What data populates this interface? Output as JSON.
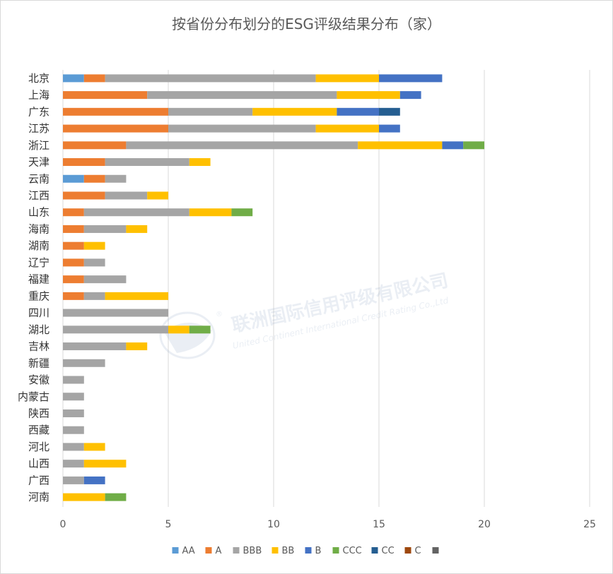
{
  "chart_data": {
    "type": "bar",
    "orientation": "horizontal",
    "stacked": true,
    "title": "按省份分布划分的ESG评级结果分布（家）",
    "categories": [
      "北京",
      "上海",
      "广东",
      "江苏",
      "浙江",
      "天津",
      "云南",
      "江西",
      "山东",
      "海南",
      "湖南",
      "辽宁",
      "福建",
      "重庆",
      "四川",
      "湖北",
      "吉林",
      "新疆",
      "安徽",
      "内蒙古",
      "陕西",
      "西藏",
      "河北",
      "山西",
      "广西",
      "河南"
    ],
    "series": [
      {
        "name": "AA",
        "color": "#5b9bd5",
        "values": [
          1,
          0,
          0,
          0,
          0,
          0,
          1,
          0,
          0,
          0,
          0,
          0,
          0,
          0,
          0,
          0,
          0,
          0,
          0,
          0,
          0,
          0,
          0,
          0,
          0,
          0
        ]
      },
      {
        "name": "A",
        "color": "#ed7d31",
        "values": [
          1,
          4,
          5,
          5,
          3,
          2,
          1,
          2,
          1,
          1,
          1,
          1,
          1,
          1,
          0,
          0,
          0,
          0,
          0,
          0,
          0,
          0,
          0,
          0,
          0,
          0
        ]
      },
      {
        "name": "BBB",
        "color": "#a5a5a5",
        "values": [
          10,
          9,
          4,
          7,
          11,
          4,
          1,
          2,
          5,
          2,
          0,
          1,
          2,
          1,
          5,
          5,
          3,
          2,
          1,
          1,
          1,
          1,
          1,
          1,
          1,
          0
        ]
      },
      {
        "name": "BB",
        "color": "#ffc000",
        "values": [
          3,
          3,
          4,
          3,
          4,
          1,
          0,
          1,
          2,
          1,
          1,
          0,
          0,
          3,
          0,
          1,
          1,
          0,
          0,
          0,
          0,
          0,
          1,
          2,
          0,
          2
        ]
      },
      {
        "name": "B",
        "color": "#4472c4",
        "values": [
          3,
          1,
          2,
          1,
          1,
          0,
          0,
          0,
          0,
          0,
          0,
          0,
          0,
          0,
          0,
          0,
          0,
          0,
          0,
          0,
          0,
          0,
          0,
          0,
          1,
          0
        ]
      },
      {
        "name": "CCC",
        "color": "#70ad47",
        "values": [
          0,
          0,
          0,
          0,
          1,
          0,
          0,
          0,
          1,
          0,
          0,
          0,
          0,
          0,
          0,
          1,
          0,
          0,
          0,
          0,
          0,
          0,
          0,
          0,
          0,
          1
        ]
      },
      {
        "name": "CC",
        "color": "#255e91",
        "values": [
          0,
          0,
          1,
          0,
          0,
          0,
          0,
          0,
          0,
          0,
          0,
          0,
          0,
          0,
          0,
          0,
          0,
          0,
          0,
          0,
          0,
          0,
          0,
          0,
          0,
          0
        ]
      },
      {
        "name": "C",
        "color": "#9e480e",
        "values": [
          0,
          0,
          0,
          0,
          0,
          0,
          0,
          0,
          0,
          0,
          0,
          0,
          0,
          0,
          0,
          0,
          0,
          0,
          0,
          0,
          0,
          0,
          0,
          0,
          0,
          0
        ]
      },
      {
        "name": "",
        "color": "#636363",
        "values": [
          0,
          0,
          0,
          0,
          0,
          0,
          0,
          0,
          0,
          0,
          0,
          0,
          0,
          0,
          0,
          0,
          0,
          0,
          0,
          0,
          0,
          0,
          0,
          0,
          0,
          0
        ]
      }
    ],
    "xlim": [
      0,
      25
    ],
    "xticks": [
      0,
      5,
      10,
      15,
      20,
      25
    ],
    "grid": "vertical",
    "legend_position": "bottom"
  },
  "watermark": {
    "name": "联洲国际信用评级有限公司",
    "english": "United Continent International Credit Rating Co.,Ltd",
    "mark": "®"
  }
}
